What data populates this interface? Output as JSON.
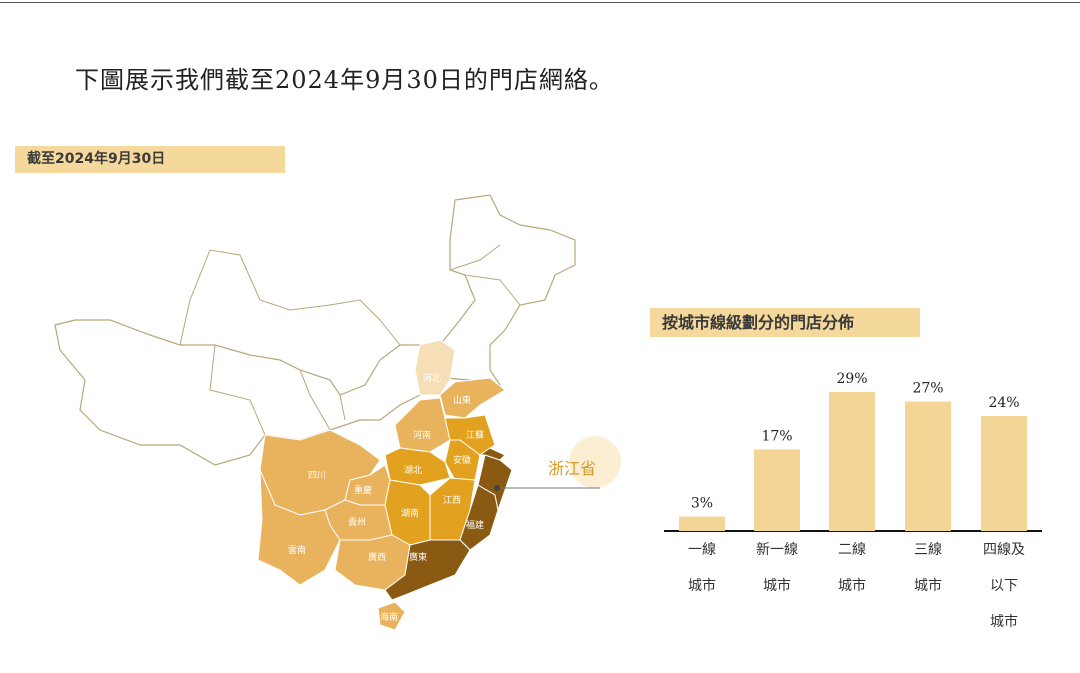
{
  "title": "下圖展示我們截至2024年9月30日的門店網絡。",
  "map_section": {
    "label": "截至2024年9月30日",
    "highlight_label": "浙江省",
    "colors": {
      "lightest": "#f6dfb6",
      "light": "#e8b35c",
      "medium": "#e2a21f",
      "dark": "#8b5a12"
    },
    "provinces": [
      {
        "name": "河北",
        "level": "lightest"
      },
      {
        "name": "山東",
        "level": "light"
      },
      {
        "name": "河南",
        "level": "light"
      },
      {
        "name": "江蘇",
        "level": "medium"
      },
      {
        "name": "安徽",
        "level": "medium"
      },
      {
        "name": "湖北",
        "level": "medium"
      },
      {
        "name": "四川",
        "level": "light"
      },
      {
        "name": "重慶",
        "level": "light"
      },
      {
        "name": "湖南",
        "level": "medium"
      },
      {
        "name": "江西",
        "level": "medium"
      },
      {
        "name": "貴州",
        "level": "light"
      },
      {
        "name": "福建",
        "level": "dark"
      },
      {
        "name": "雲南",
        "level": "light"
      },
      {
        "name": "廣西",
        "level": "light"
      },
      {
        "name": "廣東",
        "level": "dark"
      },
      {
        "name": "海南",
        "level": "light"
      }
    ]
  },
  "chart_data": {
    "type": "bar",
    "title": "按城市線級劃分的門店分佈",
    "categories": [
      "一線城市",
      "新一線城市",
      "二線城市",
      "三線城市",
      "四線及以下城市"
    ],
    "category_lines": [
      [
        "一線",
        "城市"
      ],
      [
        "新一線",
        "城市"
      ],
      [
        "二線",
        "城市"
      ],
      [
        "三線",
        "城市"
      ],
      [
        "四線及",
        "以下",
        "城市"
      ]
    ],
    "values": [
      3,
      17,
      29,
      27,
      24
    ],
    "data_labels": [
      "3%",
      "17%",
      "29%",
      "27%",
      "24%"
    ],
    "unit": "%",
    "bar_color": "#f3d595",
    "ylim": [
      0,
      30
    ],
    "grid": false
  }
}
